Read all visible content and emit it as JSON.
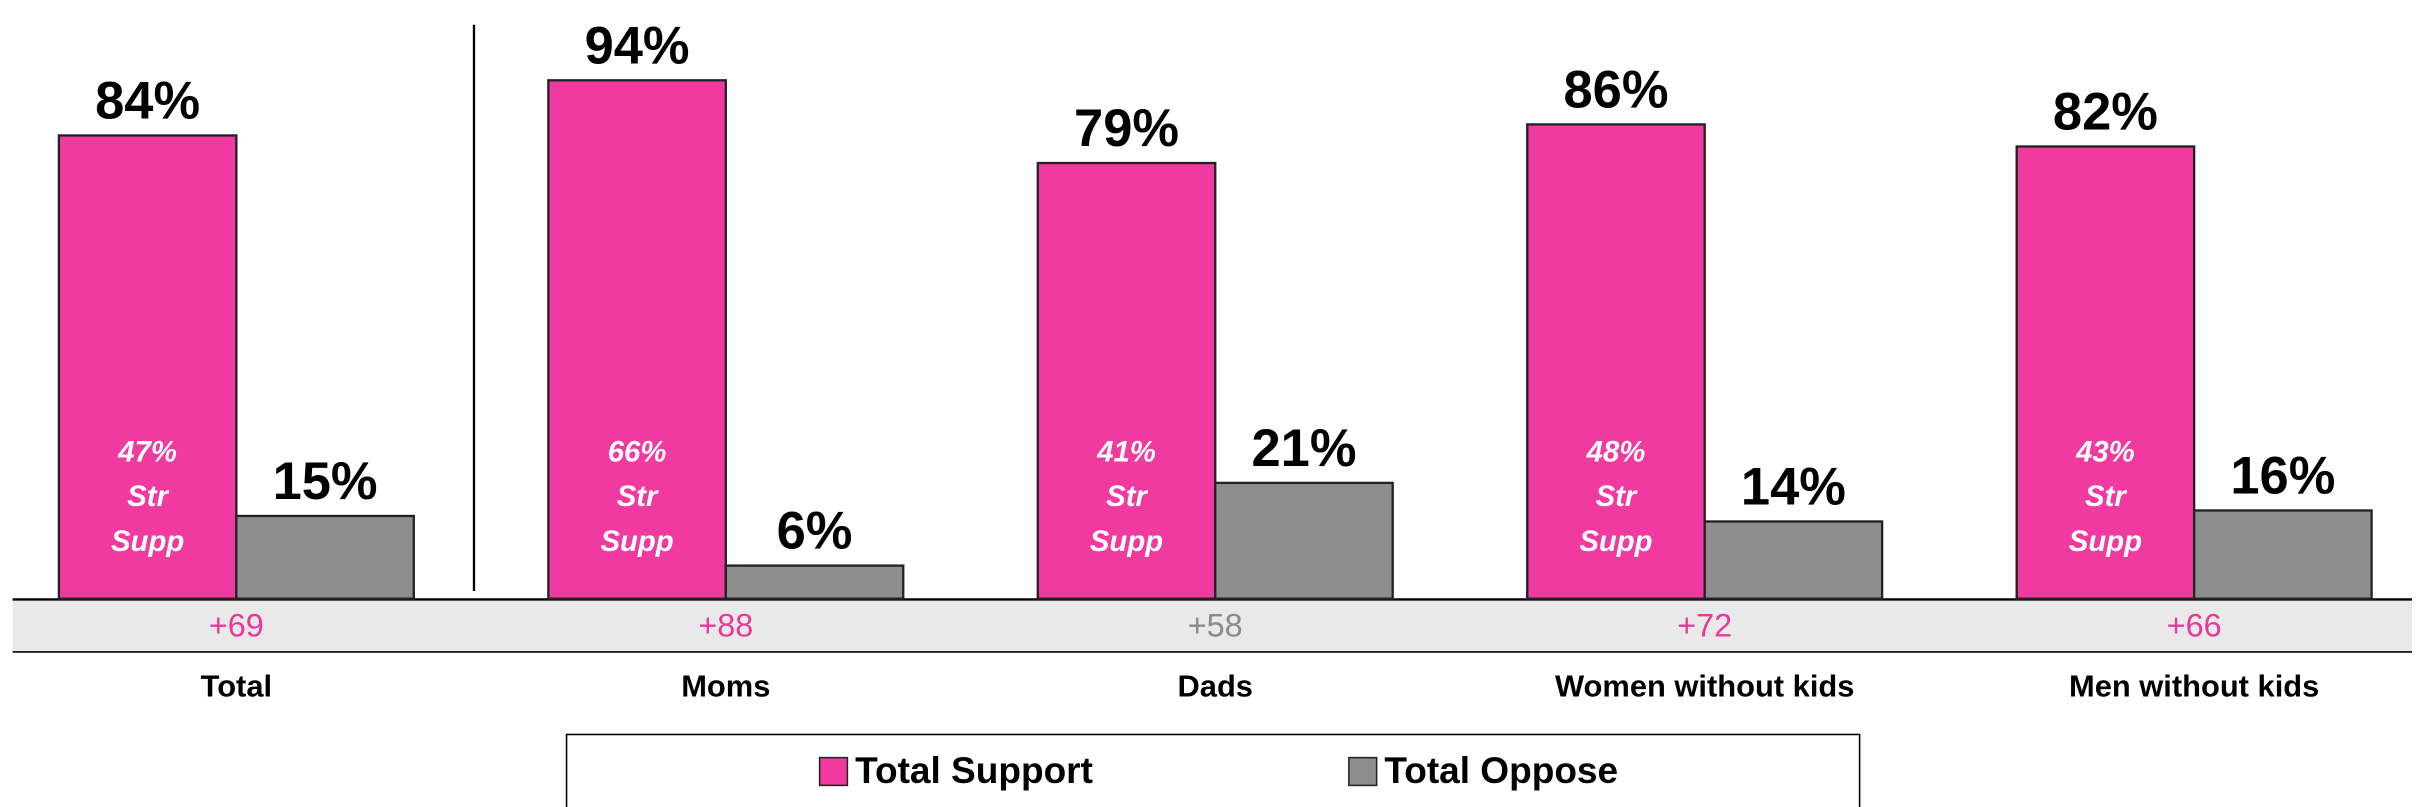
{
  "chart_data": {
    "type": "bar",
    "categories": [
      "Total",
      "Moms",
      "Dads",
      "Women without kids",
      "Men without kids"
    ],
    "series": [
      {
        "name": "Total Support",
        "color": "#f03aa0",
        "values": [
          84,
          94,
          79,
          86,
          82
        ],
        "value_labels": [
          "84%",
          "94%",
          "79%",
          "86%",
          "82%"
        ]
      },
      {
        "name": "Total Oppose",
        "color": "#8e8e8e",
        "values": [
          15,
          6,
          21,
          14,
          16
        ],
        "value_labels": [
          "15%",
          "6%",
          "21%",
          "14%",
          "16%"
        ]
      }
    ],
    "strong_support": {
      "values": [
        47,
        66,
        41,
        48,
        43
      ],
      "value_labels": [
        "47%",
        "66%",
        "41%",
        "48%",
        "43%"
      ],
      "label_lines": [
        "Str",
        "Supp"
      ]
    },
    "net": {
      "values": [
        69,
        88,
        58,
        72,
        66
      ],
      "value_labels": [
        "+69",
        "+88",
        "+58",
        "+72",
        "+66"
      ],
      "colors": [
        "#e8399a",
        "#e8399a",
        "#8a8a8a",
        "#e8399a",
        "#e8399a"
      ]
    }
  }
}
